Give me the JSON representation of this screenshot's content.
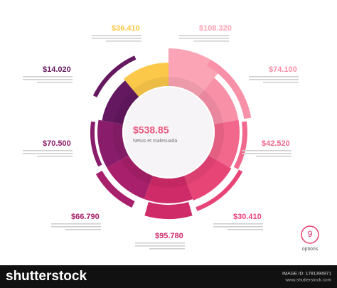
{
  "center": {
    "value": "$538.85",
    "label": "Netus et malesuada"
  },
  "items": [
    {
      "value": "$36.410"
    },
    {
      "value": "$108.320"
    },
    {
      "value": "$74.100"
    },
    {
      "value": "$42.520"
    },
    {
      "value": "$30.410"
    },
    {
      "value": "$95.780"
    },
    {
      "value": "$66.790"
    },
    {
      "value": "$70.500"
    },
    {
      "value": "$14.020"
    }
  ],
  "badge": {
    "number": "9",
    "label": "options"
  },
  "footer": {
    "brand": "shutterstock",
    "image_id": "IMAGE ID: 1781394971",
    "site": "www.shutterstock.com"
  }
}
